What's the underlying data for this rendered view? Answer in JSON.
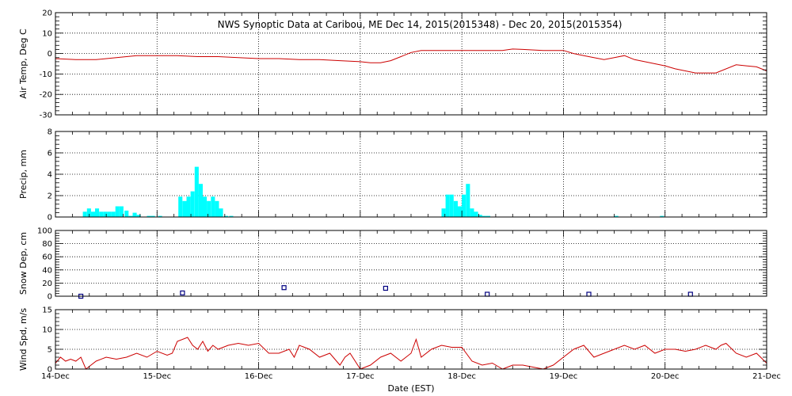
{
  "title": "NWS Synoptic Data at Caribou, ME    Dec 14, 2015(2015348) - Dec 20, 2015(2015354)",
  "xlabel": "Date (EST)",
  "x_tick_labels": [
    "14-Dec",
    "15-Dec",
    "16-Dec",
    "17-Dec",
    "18-Dec",
    "19-Dec",
    "20-Dec",
    "21-Dec"
  ],
  "colors": {
    "line": "#cc0000",
    "bar": "#00ffff",
    "marker": "#000080",
    "grid": "#000000"
  },
  "chart_data": [
    {
      "type": "line",
      "ylabel": "Air Temp, Deg C",
      "ylim": [
        -30,
        20
      ],
      "yticks": [
        -30,
        -20,
        -10,
        0,
        10,
        20
      ],
      "xlim": [
        0,
        7
      ],
      "grid": true,
      "x": [
        0,
        0.2,
        0.4,
        0.6,
        0.8,
        1.0,
        1.2,
        1.4,
        1.6,
        1.8,
        2.0,
        2.2,
        2.4,
        2.6,
        2.8,
        3.0,
        3.1,
        3.2,
        3.3,
        3.4,
        3.5,
        3.6,
        3.8,
        4.0,
        4.2,
        4.4,
        4.5,
        4.6,
        4.8,
        5.0,
        5.1,
        5.2,
        5.3,
        5.4,
        5.5,
        5.6,
        5.7,
        5.8,
        5.9,
        6.0,
        6.1,
        6.3,
        6.4,
        6.5,
        6.7,
        6.8,
        6.9,
        7.0
      ],
      "y": [
        -2.5,
        -3,
        -3,
        -2,
        -1,
        -1,
        -1,
        -1.5,
        -1.5,
        -2,
        -2.5,
        -2.5,
        -3,
        -3,
        -3.5,
        -4,
        -4.5,
        -4.5,
        -3.5,
        -1.5,
        0.5,
        1.5,
        1.5,
        1.5,
        1.5,
        1.5,
        2.2,
        2,
        1.5,
        1.5,
        0,
        -1,
        -2,
        -3,
        -2,
        -1,
        -3,
        -4,
        -5,
        -6,
        -7.5,
        -9.5,
        -9.5,
        -9.5,
        -5.5,
        -6,
        -6.5,
        -8.5
      ]
    },
    {
      "type": "bar",
      "ylabel": "Precip, mm",
      "ylim": [
        0,
        8
      ],
      "yticks": [
        0,
        2,
        4,
        6,
        8
      ],
      "xlim": [
        0,
        7
      ],
      "grid": true,
      "bar_width": 0.04,
      "x": [
        0.27,
        0.31,
        0.35,
        0.39,
        0.43,
        0.47,
        0.51,
        0.55,
        0.59,
        0.63,
        0.68,
        0.72,
        0.76,
        0.8,
        0.9,
        0.94,
        1.01,
        1.21,
        1.25,
        1.29,
        1.33,
        1.37,
        1.41,
        1.45,
        1.49,
        1.53,
        1.57,
        1.61,
        1.66,
        1.71,
        3.8,
        3.84,
        3.88,
        3.92,
        3.96,
        4.0,
        4.04,
        4.08,
        4.12,
        4.16,
        4.2,
        4.24,
        5.5,
        5.95
      ],
      "values": [
        0.5,
        0.8,
        0.5,
        0.8,
        0.5,
        0.5,
        0.5,
        0.5,
        1.0,
        1.0,
        0.6,
        0.1,
        0.4,
        0.2,
        0.1,
        0.1,
        0.1,
        1.9,
        1.5,
        1.9,
        2.4,
        4.7,
        3.1,
        1.9,
        1.5,
        1.9,
        1.5,
        0.8,
        0.1,
        0.1,
        0.8,
        2.1,
        2.1,
        1.5,
        1.0,
        2.1,
        3.1,
        0.8,
        0.5,
        0.2,
        0.1,
        0.1,
        0.1,
        0.1
      ]
    },
    {
      "type": "scatter",
      "ylabel": "Snow Dep, cm",
      "ylim": [
        0,
        100
      ],
      "yticks": [
        0,
        20,
        40,
        60,
        80,
        100
      ],
      "xlim": [
        0,
        7
      ],
      "grid": true,
      "x": [
        0.25,
        1.25,
        2.25,
        3.25,
        4.25,
        5.25,
        6.25
      ],
      "values": [
        0,
        5,
        13,
        12,
        3,
        3,
        3
      ]
    },
    {
      "type": "line",
      "ylabel": "Wind Spd, m/s",
      "ylim": [
        0,
        15
      ],
      "yticks": [
        0,
        5,
        10,
        15
      ],
      "xlim": [
        0,
        7
      ],
      "grid": true,
      "x": [
        0,
        0.05,
        0.1,
        0.15,
        0.2,
        0.25,
        0.3,
        0.4,
        0.5,
        0.6,
        0.7,
        0.8,
        0.9,
        1.0,
        1.1,
        1.15,
        1.2,
        1.3,
        1.35,
        1.4,
        1.45,
        1.5,
        1.55,
        1.6,
        1.7,
        1.8,
        1.9,
        2.0,
        2.1,
        2.2,
        2.3,
        2.35,
        2.4,
        2.5,
        2.6,
        2.7,
        2.8,
        2.85,
        2.9,
        3.0,
        3.1,
        3.2,
        3.3,
        3.4,
        3.5,
        3.55,
        3.6,
        3.7,
        3.8,
        3.9,
        4.0,
        4.1,
        4.2,
        4.3,
        4.4,
        4.5,
        4.6,
        4.7,
        4.8,
        4.9,
        5.0,
        5.1,
        5.2,
        5.3,
        5.4,
        5.5,
        5.6,
        5.7,
        5.8,
        5.9,
        6.0,
        6.1,
        6.2,
        6.3,
        6.4,
        6.5,
        6.55,
        6.6,
        6.7,
        6.8,
        6.9,
        7.0
      ],
      "y": [
        1.5,
        3,
        2,
        2.5,
        2,
        3,
        0,
        2,
        3,
        2.5,
        3,
        4,
        3,
        4.5,
        3.5,
        4,
        7,
        8,
        6,
        5,
        7,
        4.5,
        6,
        5,
        6,
        6.5,
        6,
        6.5,
        4,
        4,
        5,
        3,
        6,
        5,
        3,
        4,
        1,
        3,
        4,
        0,
        1,
        3,
        4,
        2,
        4,
        7.5,
        3,
        5,
        6,
        5.5,
        5.5,
        2,
        1,
        1.5,
        0,
        1,
        1,
        0.5,
        0,
        1,
        3,
        5,
        6,
        3,
        4,
        5,
        6,
        5,
        6,
        4,
        5,
        5,
        4.5,
        5,
        6,
        5,
        6,
        6.5,
        4,
        3,
        4,
        1.5
      ]
    }
  ]
}
